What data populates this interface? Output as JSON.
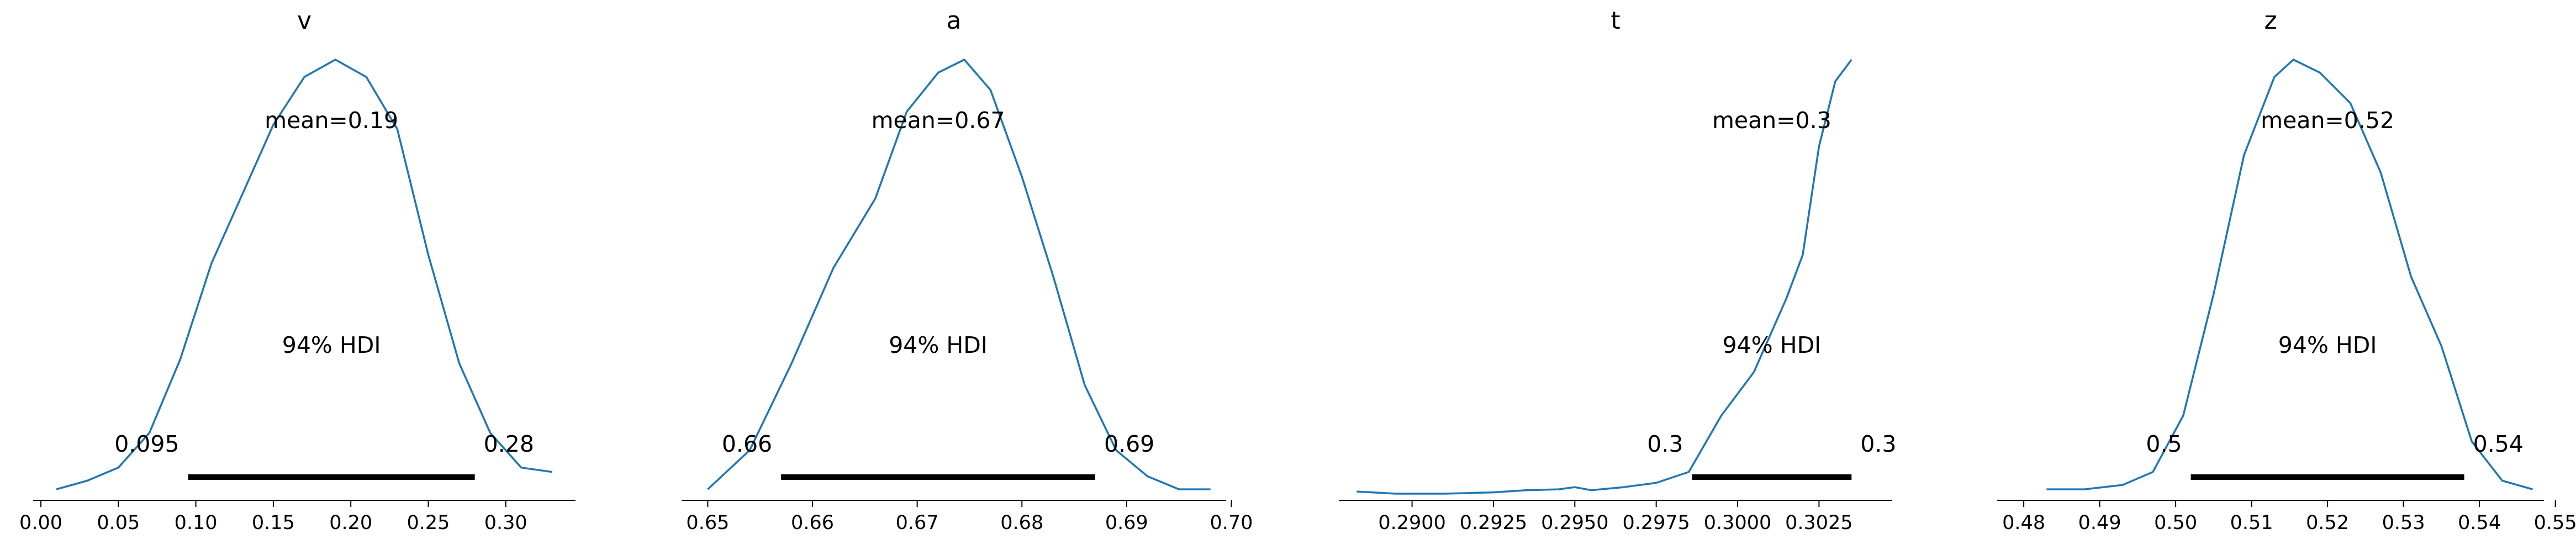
{
  "chart_data": [
    {
      "type": "area",
      "title": "v",
      "xlim": [
        -0.005,
        0.345
      ],
      "x_ticks": [
        0.0,
        0.05,
        0.1,
        0.15,
        0.2,
        0.25,
        0.3
      ],
      "tick_labels": [
        "0.00",
        "0.05",
        "0.10",
        "0.15",
        "0.20",
        "0.25",
        "0.30"
      ],
      "mean_label": "mean=0.19",
      "hdi_label": "94% HDI",
      "hdi": [
        0.095,
        0.28
      ],
      "hdi_low_label": "0.095",
      "hdi_high_label": "0.28",
      "density": {
        "x": [
          0.01,
          0.03,
          0.05,
          0.07,
          0.09,
          0.11,
          0.13,
          0.15,
          0.17,
          0.19,
          0.21,
          0.23,
          0.25,
          0.27,
          0.29,
          0.31,
          0.33
        ],
        "y": [
          0.01,
          0.03,
          0.06,
          0.14,
          0.31,
          0.53,
          0.69,
          0.85,
          0.96,
          1.0,
          0.96,
          0.84,
          0.55,
          0.3,
          0.14,
          0.06,
          0.05
        ]
      }
    },
    {
      "type": "area",
      "title": "a",
      "xlim": [
        0.6475,
        0.6995
      ],
      "x_ticks": [
        0.65,
        0.66,
        0.67,
        0.68,
        0.69,
        0.7
      ],
      "tick_labels": [
        "0.65",
        "0.66",
        "0.67",
        "0.68",
        "0.69",
        "0.70"
      ],
      "mean_label": "mean=0.67",
      "hdi_label": "94% HDI",
      "hdi": [
        0.657,
        0.687
      ],
      "hdi_low_label": "0.66",
      "hdi_high_label": "0.69",
      "density": {
        "x": [
          0.65,
          0.654,
          0.658,
          0.662,
          0.666,
          0.669,
          0.672,
          0.6745,
          0.677,
          0.68,
          0.683,
          0.686,
          0.689,
          0.692,
          0.695,
          0.698
        ],
        "y": [
          0.01,
          0.1,
          0.3,
          0.52,
          0.68,
          0.88,
          0.97,
          1.0,
          0.93,
          0.73,
          0.5,
          0.25,
          0.1,
          0.04,
          0.01,
          0.01
        ]
      }
    },
    {
      "type": "area",
      "title": "t",
      "xlim": [
        0.28775,
        0.30475
      ],
      "x_ticks": [
        0.29,
        0.2925,
        0.295,
        0.2975,
        0.3,
        0.3025
      ],
      "tick_labels": [
        "0.2900",
        "0.2925",
        "0.2950",
        "0.2975",
        "0.3000",
        "0.3025"
      ],
      "mean_label": "mean=0.3",
      "hdi_label": "94% HDI",
      "hdi": [
        0.2986,
        0.3035
      ],
      "hdi_low_label": "0.3",
      "hdi_high_label": "0.3",
      "density": {
        "x": [
          0.2883,
          0.2895,
          0.291,
          0.2925,
          0.2935,
          0.2945,
          0.295,
          0.2955,
          0.2965,
          0.2975,
          0.2985,
          0.2995,
          0.3005,
          0.3015,
          0.302,
          0.3025,
          0.303,
          0.3035
        ],
        "y": [
          0.005,
          0.0,
          0.0,
          0.003,
          0.008,
          0.01,
          0.015,
          0.008,
          0.015,
          0.025,
          0.05,
          0.18,
          0.28,
          0.45,
          0.55,
          0.8,
          0.95,
          1.0
        ]
      }
    },
    {
      "type": "area",
      "title": "z",
      "xlim": [
        0.4765,
        0.5485
      ],
      "x_ticks": [
        0.48,
        0.49,
        0.5,
        0.51,
        0.52,
        0.53,
        0.54,
        0.55
      ],
      "tick_labels": [
        "0.48",
        "0.49",
        "0.50",
        "0.51",
        "0.52",
        "0.53",
        "0.54",
        "0.55"
      ],
      "mean_label": "mean=0.52",
      "hdi_label": "94% HDI",
      "hdi": [
        0.502,
        0.538
      ],
      "hdi_low_label": "0.5",
      "hdi_high_label": "0.54",
      "density": {
        "x": [
          0.483,
          0.488,
          0.493,
          0.497,
          0.501,
          0.505,
          0.509,
          0.513,
          0.5155,
          0.519,
          0.523,
          0.527,
          0.531,
          0.535,
          0.539,
          0.543,
          0.547
        ],
        "y": [
          0.01,
          0.01,
          0.02,
          0.05,
          0.18,
          0.46,
          0.78,
          0.96,
          1.0,
          0.97,
          0.9,
          0.74,
          0.5,
          0.34,
          0.12,
          0.03,
          0.01
        ]
      }
    }
  ]
}
